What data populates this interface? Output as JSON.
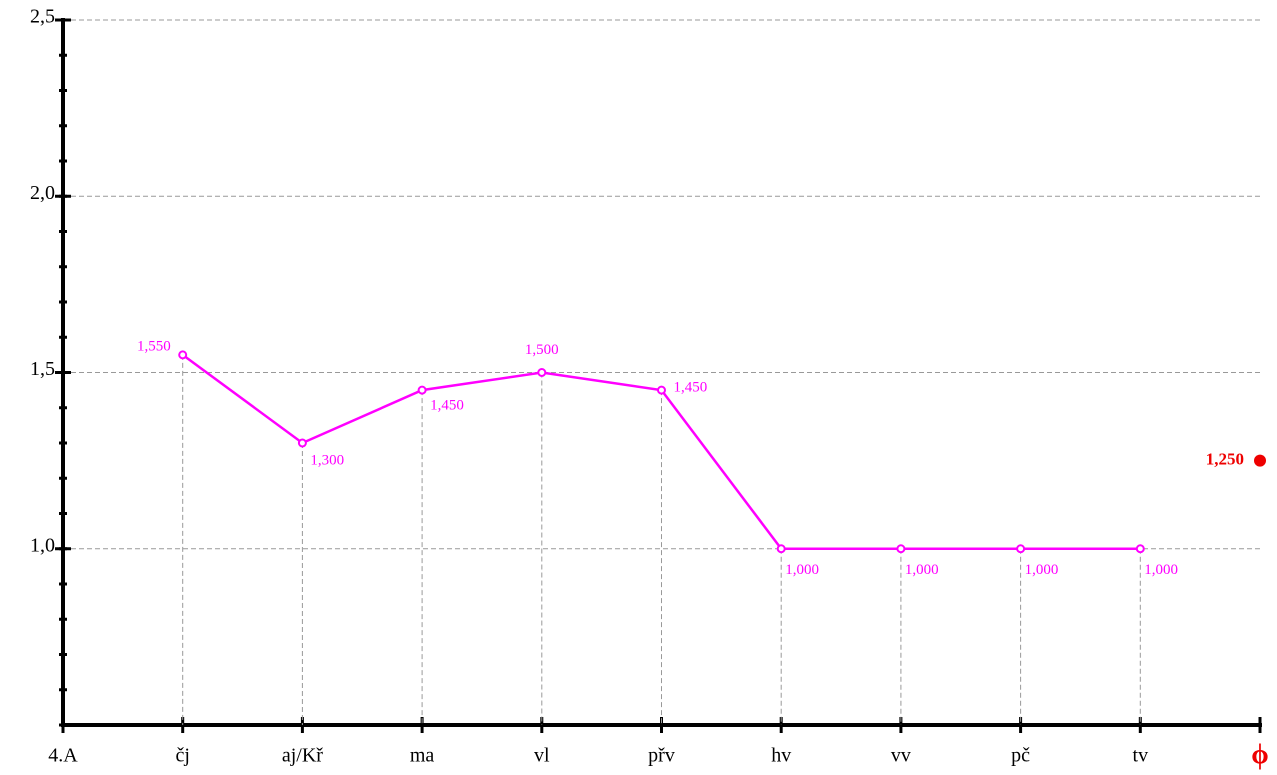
{
  "chart_data": {
    "type": "line",
    "categories": [
      "4.A",
      "čj",
      "aj/Kř",
      "ma",
      "vl",
      "přv",
      "hv",
      "vv",
      "pč",
      "tv",
      "ϕ"
    ],
    "series": [
      {
        "color": "#ff00ff",
        "values": [
          null,
          1.55,
          1.3,
          1.45,
          1.5,
          1.45,
          1.0,
          1.0,
          1.0,
          1.0,
          null
        ],
        "value_labels": [
          null,
          "1,550",
          "1,300",
          "1,450",
          "1,500",
          "1,450",
          "1,000",
          "1,000",
          "1,000",
          "1,000",
          null
        ]
      }
    ],
    "average": {
      "value": 1.25,
      "label": "1,250",
      "color": "#ee0000"
    },
    "ylim": [
      0.5,
      2.5
    ],
    "yticks": [
      {
        "value": 1.0,
        "label": "1,0"
      },
      {
        "value": 1.5,
        "label": "1,5"
      },
      {
        "value": 2.0,
        "label": "2,0"
      },
      {
        "value": 2.5,
        "label": "2,5"
      }
    ],
    "grid": true
  }
}
